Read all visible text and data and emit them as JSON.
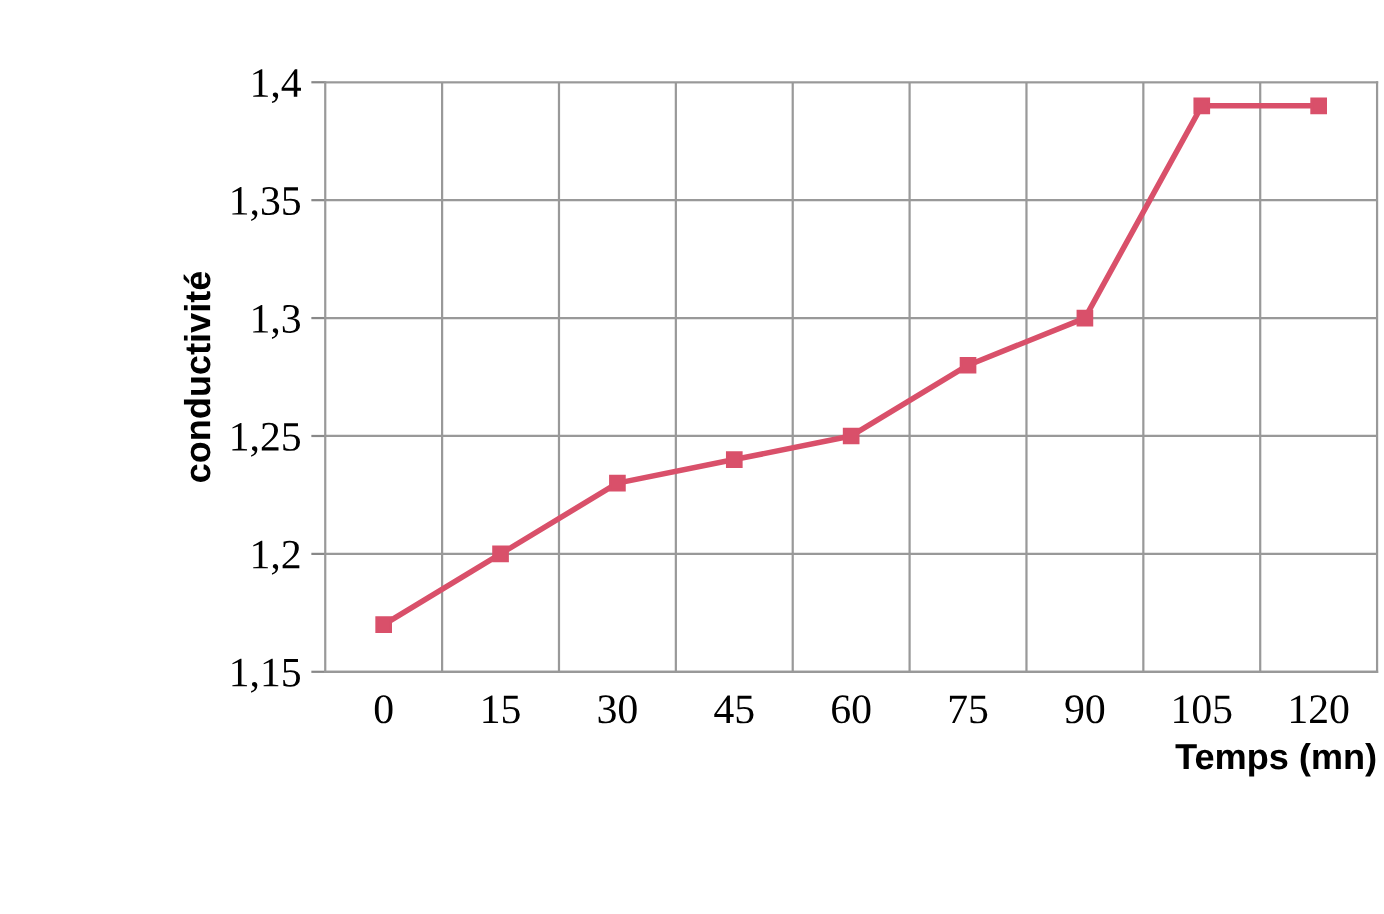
{
  "chart_data": {
    "type": "line",
    "xlabel": "Temps (mn)",
    "ylabel": "conductivité",
    "categories": [
      "0",
      "15",
      "30",
      "45",
      "60",
      "75",
      "90",
      "105",
      "120"
    ],
    "series": [
      {
        "color": "#d9506a",
        "values": [
          1.17,
          1.2,
          1.23,
          1.24,
          1.25,
          1.28,
          1.3,
          1.39,
          1.39
        ]
      }
    ],
    "ylim": [
      1.15,
      1.4
    ],
    "yticks": [
      {
        "value": 1.15,
        "label": "1,15"
      },
      {
        "value": 1.2,
        "label": "1,2"
      },
      {
        "value": 1.25,
        "label": "1,25"
      },
      {
        "value": 1.3,
        "label": "1,3"
      },
      {
        "value": 1.35,
        "label": "1,35"
      },
      {
        "value": 1.4,
        "label": "1,4"
      }
    ],
    "grid": true,
    "marker": "square",
    "line_style": "solid"
  }
}
